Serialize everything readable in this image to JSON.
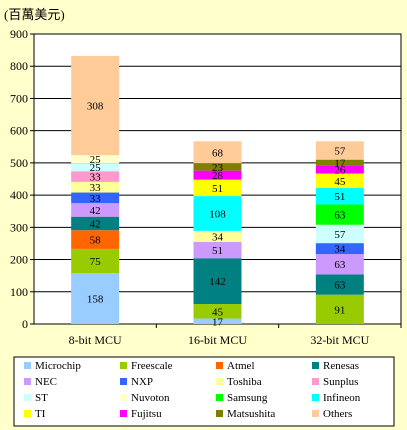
{
  "chart_data": {
    "type": "bar",
    "stacked": true,
    "unit_label": "(百萬美元)",
    "categories": [
      "8-bit MCU",
      "16-bit MCU",
      "32-bit MCU"
    ],
    "ylim": [
      0,
      900
    ],
    "yticks": [
      0,
      100,
      200,
      300,
      400,
      500,
      600,
      700,
      800,
      900
    ],
    "grid": true,
    "legend_position": "bottom",
    "series": [
      {
        "name": "Microchip",
        "color": "#99ccff",
        "values": [
          158,
          17,
          0
        ]
      },
      {
        "name": "Freescale",
        "color": "#99cc00",
        "values": [
          75,
          45,
          91
        ]
      },
      {
        "name": "Atmel",
        "color": "#ff6600",
        "values": [
          58,
          0,
          0
        ]
      },
      {
        "name": "Renesas",
        "color": "#008080",
        "values": [
          42,
          142,
          63
        ]
      },
      {
        "name": "NEC",
        "color": "#cc99ff",
        "values": [
          42,
          51,
          63
        ]
      },
      {
        "name": "NXP",
        "color": "#3366ff",
        "values": [
          33,
          0,
          34
        ]
      },
      {
        "name": "Toshiba",
        "color": "#ffff99",
        "values": [
          33,
          34,
          0
        ]
      },
      {
        "name": "Sunplus",
        "color": "#ff99cc",
        "values": [
          33,
          0,
          0
        ]
      },
      {
        "name": "ST",
        "color": "#ccffff",
        "values": [
          25,
          0,
          57
        ]
      },
      {
        "name": "Nuvoton",
        "color": "#ffffcc",
        "values": [
          25,
          0,
          0
        ]
      },
      {
        "name": "Samsung",
        "color": "#00ff00",
        "values": [
          0,
          0,
          63
        ]
      },
      {
        "name": "Infineon",
        "color": "#00ffff",
        "values": [
          0,
          108,
          51
        ]
      },
      {
        "name": "TI",
        "color": "#ffff00",
        "values": [
          0,
          51,
          45
        ]
      },
      {
        "name": "Fujitsu",
        "color": "#ff00ff",
        "values": [
          0,
          28,
          26
        ]
      },
      {
        "name": "Matsushita",
        "color": "#808000",
        "values": [
          0,
          23,
          17
        ]
      },
      {
        "name": "Others",
        "color": "#ffcc99",
        "values": [
          308,
          68,
          57
        ]
      }
    ],
    "legend_order": [
      "Microchip",
      "Freescale",
      "Atmel",
      "Renesas",
      "NEC",
      "NXP",
      "Toshiba",
      "Sunplus",
      "ST",
      "Nuvoton",
      "Samsung",
      "Infineon",
      "TI",
      "Fujitsu",
      "Matsushita",
      "Others"
    ]
  }
}
